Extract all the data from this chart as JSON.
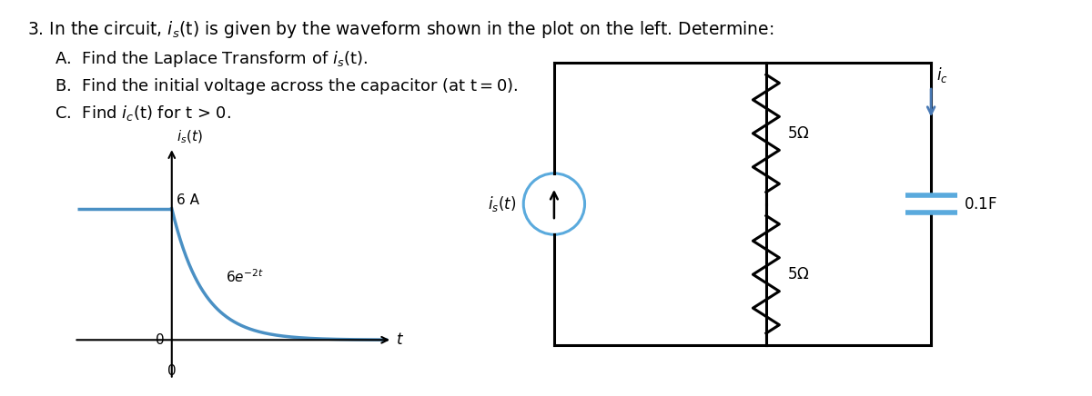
{
  "bg_color": "#ffffff",
  "text_color": "#000000",
  "waveform_color": "#4a90c4",
  "circuit_line_color": "#000000",
  "source_circle_color": "#5aaadd",
  "capacitor_color": "#5aaadd",
  "ic_arrow_color": "#4a7ab5",
  "font_size_main": 13.5,
  "font_size_items": 13,
  "font_size_labels": 12
}
